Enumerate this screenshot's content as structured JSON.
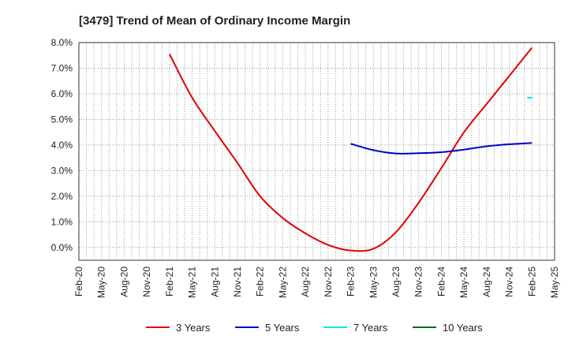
{
  "chart_data": {
    "type": "line",
    "title": "[3479]  Trend of Mean of Ordinary Income Margin",
    "xlabel": "",
    "ylabel": "",
    "ylim": [
      -0.5,
      8.0
    ],
    "y_ticks": [
      "8.0%",
      "7.0%",
      "6.0%",
      "5.0%",
      "4.0%",
      "3.0%",
      "2.0%",
      "1.0%",
      "0.0%"
    ],
    "y_tick_values": [
      8,
      7,
      6,
      5,
      4,
      3,
      2,
      1,
      0
    ],
    "categories": [
      "Feb-20",
      "May-20",
      "Aug-20",
      "Nov-20",
      "Feb-21",
      "May-21",
      "Aug-21",
      "Nov-21",
      "Feb-22",
      "May-22",
      "Aug-22",
      "Nov-22",
      "Feb-23",
      "May-23",
      "Aug-23",
      "Nov-23",
      "Feb-24",
      "May-24",
      "Aug-24",
      "Nov-24",
      "Feb-25",
      "May-25"
    ],
    "grid": true,
    "legend_position": "bottom",
    "series": [
      {
        "name": "3 Years",
        "color": "#e00000",
        "points": [
          [
            "Feb-21",
            7.55
          ],
          [
            "May-21",
            5.85
          ],
          [
            "Aug-21",
            4.55
          ],
          [
            "Nov-21",
            3.3
          ],
          [
            "Feb-22",
            2.0
          ],
          [
            "May-22",
            1.15
          ],
          [
            "Aug-22",
            0.55
          ],
          [
            "Nov-22",
            0.1
          ],
          [
            "Feb-23",
            -0.12
          ],
          [
            "May-23",
            -0.05
          ],
          [
            "Aug-23",
            0.6
          ],
          [
            "Nov-23",
            1.75
          ],
          [
            "Feb-24",
            3.1
          ],
          [
            "May-24",
            4.5
          ],
          [
            "Aug-24",
            5.6
          ],
          [
            "Nov-24",
            6.7
          ],
          [
            "Feb-25",
            7.8
          ]
        ]
      },
      {
        "name": "5 Years",
        "color": "#0000c8",
        "points": [
          [
            "Feb-23",
            4.05
          ],
          [
            "May-23",
            3.8
          ],
          [
            "Aug-23",
            3.67
          ],
          [
            "Nov-23",
            3.68
          ],
          [
            "Feb-24",
            3.72
          ],
          [
            "May-24",
            3.82
          ],
          [
            "Aug-24",
            3.95
          ],
          [
            "Nov-24",
            4.03
          ],
          [
            "Feb-25",
            4.08
          ]
        ]
      },
      {
        "name": "7 Years",
        "color": "#00e5e5",
        "points": [
          [
            "Feb-25",
            5.85
          ]
        ]
      },
      {
        "name": "10 Years",
        "color": "#007000",
        "points": []
      }
    ]
  }
}
